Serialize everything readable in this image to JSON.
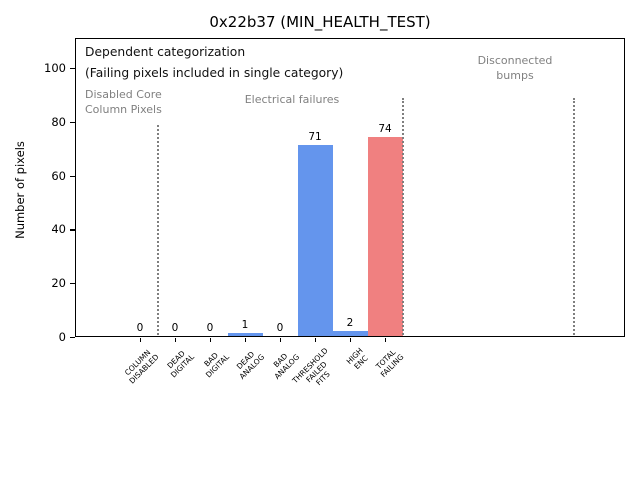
{
  "chart_data": {
    "type": "bar",
    "title": "0x22b37 (MIN_HEALTH_TEST)",
    "ylabel": "Number of pixels",
    "xlabel": "",
    "categories": [
      [
        "COLUMN",
        "DISABLED"
      ],
      [
        "DEAD",
        "DIGITAL"
      ],
      [
        "BAD",
        "DIGITAL"
      ],
      [
        "DEAD",
        "ANALOG"
      ],
      [
        "BAD",
        "ANALOG"
      ],
      [
        "THRESHOLD",
        "FAILED",
        "FITS"
      ],
      [
        "HIGH",
        "ENC"
      ],
      [
        "TOTAL",
        "FAILING"
      ]
    ],
    "values": [
      0,
      0,
      0,
      1,
      0,
      71,
      2,
      74
    ],
    "bar_colors": [
      "#6495ed",
      "#6495ed",
      "#6495ed",
      "#6495ed",
      "#6495ed",
      "#6495ed",
      "#6495ed",
      "#f08080"
    ],
    "ylim": [
      0,
      111
    ],
    "yticks": [
      0,
      20,
      40,
      60,
      80,
      100
    ],
    "grid": false,
    "section_separators": [
      {
        "x": 0.5,
        "top": 79
      },
      {
        "x": 7.5,
        "top": 89
      },
      {
        "x": 12.4,
        "top": 89
      }
    ],
    "annotations": {
      "heading": [
        "Dependent categorization",
        "(Failing pixels included in single category)"
      ],
      "sections": [
        {
          "label_lines": [
            "Disabled Core",
            "Column Pixels"
          ]
        },
        {
          "label_lines": [
            "Electrical failures"
          ]
        },
        {
          "label_lines": [
            "Disconnected",
            "bumps"
          ]
        }
      ]
    },
    "colors": {
      "bar_blue": "#6495ed",
      "bar_red": "#f08080",
      "annotation_gray": "#808080",
      "separator_gray": "#7f7f7f",
      "axis_black": "#000000"
    }
  }
}
